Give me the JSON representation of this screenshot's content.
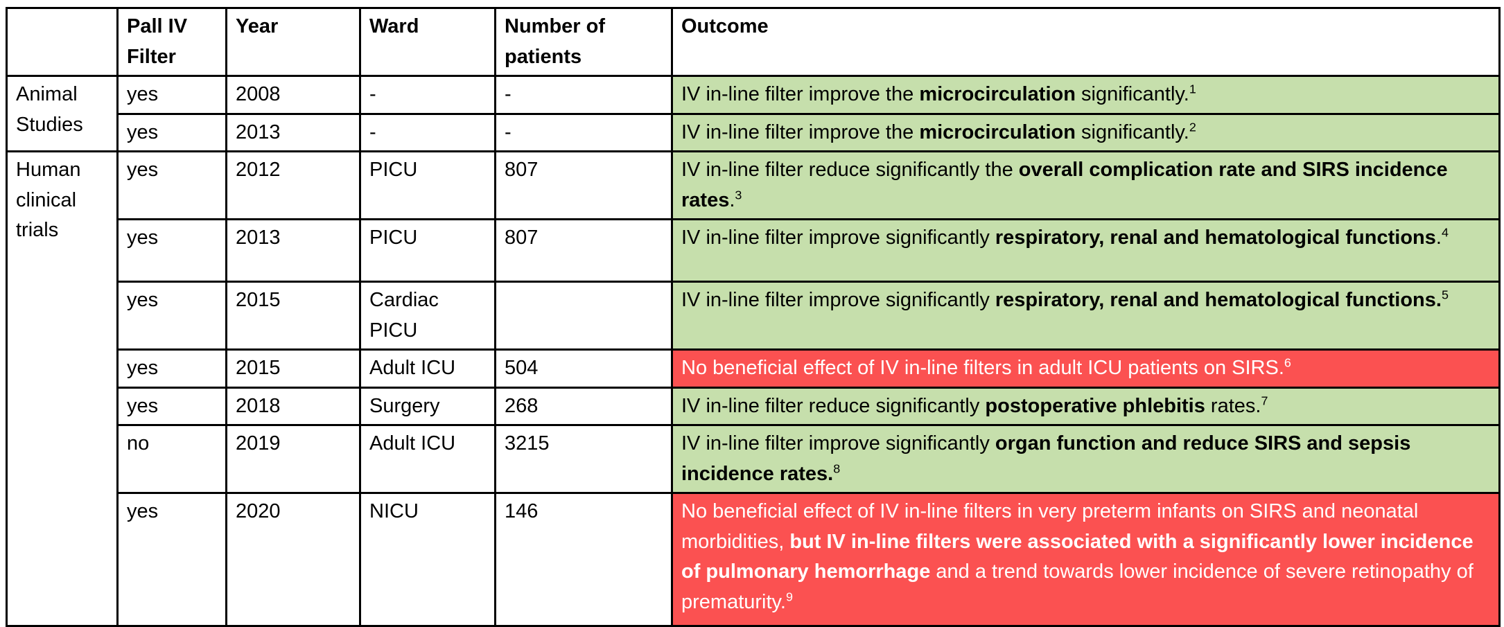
{
  "colors": {
    "positive_green": "#c6dfac",
    "negative_red": "#fb5151",
    "border": "#000000",
    "text": "#000000",
    "text_on_red": "#ffffff"
  },
  "table": {
    "columns": [
      "",
      "Pall IV Filter",
      "Year",
      "Ward",
      "Number of patients",
      "Outcome"
    ],
    "groups": [
      {
        "label": "Animal Studies",
        "rows": [
          {
            "filter": "yes",
            "year": "2008",
            "ward": "-",
            "patients": "-",
            "outcome": {
              "tone": "positive",
              "segments": [
                {
                  "text": "IV in-line filter improve the ",
                  "bold": false
                },
                {
                  "text": "microcirculation",
                  "bold": true
                },
                {
                  "text": " significantly.",
                  "bold": false
                }
              ],
              "ref": "1"
            }
          },
          {
            "filter": "yes",
            "year": "2013",
            "ward": "-",
            "patients": "-",
            "outcome": {
              "tone": "positive",
              "segments": [
                {
                  "text": "IV in-line filter improve the ",
                  "bold": false
                },
                {
                  "text": "microcirculation",
                  "bold": true
                },
                {
                  "text": " significantly.",
                  "bold": false
                }
              ],
              "ref": "2"
            }
          }
        ]
      },
      {
        "label": "Human clinical trials",
        "rows": [
          {
            "filter": "yes",
            "year": "2012",
            "ward": "PICU",
            "patients": "807",
            "outcome": {
              "tone": "positive",
              "segments": [
                {
                  "text": "IV in-line filter reduce significantly the ",
                  "bold": false
                },
                {
                  "text": "overall complication rate and SIRS incidence rates",
                  "bold": true
                },
                {
                  "text": ".",
                  "bold": false
                }
              ],
              "ref": "3"
            }
          },
          {
            "filter": "yes",
            "year": "2013",
            "ward": "PICU",
            "patients": "807",
            "outcome": {
              "tone": "positive",
              "segments": [
                {
                  "text": "IV in-line filter improve significantly ",
                  "bold": false
                },
                {
                  "text": "respiratory, renal and hematological functions",
                  "bold": true
                },
                {
                  "text": ".",
                  "bold": false
                }
              ],
              "ref": "4"
            }
          },
          {
            "filter": "yes",
            "year": "2015",
            "ward": "Cardiac PICU",
            "patients": "",
            "outcome": {
              "tone": "positive",
              "segments": [
                {
                  "text": "IV in-line filter improve significantly ",
                  "bold": false
                },
                {
                  "text": "respiratory, renal and hematological functions.",
                  "bold": true
                }
              ],
              "ref": "5"
            }
          },
          {
            "filter": "yes",
            "year": "2015",
            "ward": "Adult ICU",
            "patients": "504",
            "outcome": {
              "tone": "negative",
              "segments": [
                {
                  "text": "No beneficial effect of IV in-line filters in adult ICU patients on SIRS.",
                  "bold": false
                }
              ],
              "ref": "6"
            }
          },
          {
            "filter": "yes",
            "year": "2018",
            "ward": "Surgery",
            "patients": "268",
            "outcome": {
              "tone": "positive",
              "segments": [
                {
                  "text": "IV in-line filter reduce significantly ",
                  "bold": false
                },
                {
                  "text": "postoperative phlebitis",
                  "bold": true
                },
                {
                  "text": " rates.",
                  "bold": false
                }
              ],
              "ref": "7"
            }
          },
          {
            "filter": "no",
            "year": "2019",
            "ward": "Adult ICU",
            "patients": "3215",
            "outcome": {
              "tone": "positive",
              "segments": [
                {
                  "text": "IV in-line filter improve significantly ",
                  "bold": false
                },
                {
                  "text": "organ function and reduce SIRS and sepsis incidence rates.",
                  "bold": true
                }
              ],
              "ref": "8"
            }
          },
          {
            "filter": "yes",
            "year": "2020",
            "ward": "NICU",
            "patients": "146",
            "outcome": {
              "tone": "negative",
              "segments": [
                {
                  "text": "No beneficial effect of IV in-line filters in very preterm infants on SIRS and neonatal morbidities, ",
                  "bold": false
                },
                {
                  "text": "but IV in-line filters were associated with a significantly lower incidence of pulmonary hemorrhage",
                  "bold": true
                },
                {
                  "text": " and a trend towards lower incidence of severe retinopathy of prematurity.",
                  "bold": false
                }
              ],
              "ref": "9"
            }
          }
        ]
      }
    ]
  }
}
